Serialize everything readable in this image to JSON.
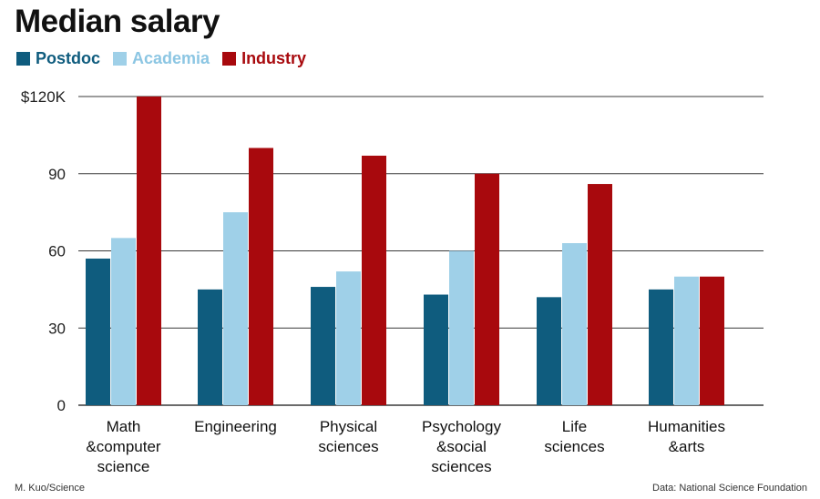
{
  "chart_data": {
    "type": "bar",
    "title": "Median salary",
    "categories": [
      [
        "Math",
        "&computer",
        "science"
      ],
      [
        "Engineering"
      ],
      [
        "Physical",
        "sciences"
      ],
      [
        "Psychology",
        "&social",
        "sciences"
      ],
      [
        "Life",
        "sciences"
      ],
      [
        "Humanities",
        "&arts"
      ]
    ],
    "series": [
      {
        "name": "Postdoc",
        "color": "#0f5c7e",
        "values": [
          57,
          45,
          46,
          43,
          42,
          45
        ]
      },
      {
        "name": "Academia",
        "color": "#9fd0e8",
        "values": [
          65,
          75,
          52,
          60,
          63,
          50
        ]
      },
      {
        "name": "Industry",
        "color": "#a8090d",
        "values": [
          120,
          100,
          97,
          90,
          86,
          50
        ]
      }
    ],
    "ylim": [
      0,
      120
    ],
    "yticks": [
      {
        "value": 0,
        "label": "0"
      },
      {
        "value": 30,
        "label": "30"
      },
      {
        "value": 60,
        "label": "60"
      },
      {
        "value": 90,
        "label": "90"
      },
      {
        "value": 120,
        "label": "$120K"
      }
    ],
    "xlabel": "",
    "ylabel": "",
    "legend_position": "top-left",
    "grid": true
  },
  "footer": {
    "credit": "M. Kuo/Science",
    "source": "Data: National Science Foundation"
  }
}
